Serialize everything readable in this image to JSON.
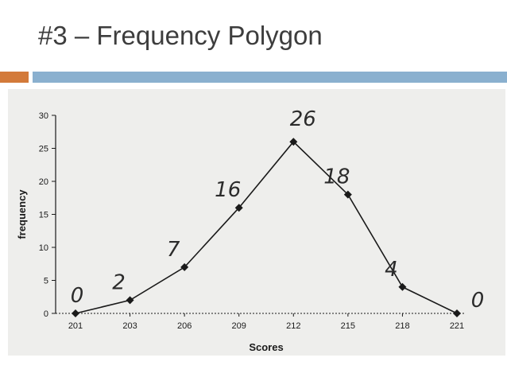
{
  "slide": {
    "title": "#3 – Frequency Polygon"
  },
  "colors": {
    "accent_orange": "#d37a3a",
    "accent_blue": "#8ab0cf",
    "photo_background": "#eeeeec",
    "ink": "#1a1a1a"
  },
  "chart_data": {
    "type": "line",
    "title": "",
    "xlabel": "Scores",
    "ylabel": "frequency",
    "x": [
      "201",
      "203",
      "206",
      "209",
      "212",
      "215",
      "218",
      "221"
    ],
    "y": [
      0,
      2,
      7,
      16,
      26,
      18,
      4,
      0
    ],
    "ylim": [
      0,
      30
    ],
    "yticks": [
      "0",
      "5",
      "10",
      "15",
      "20",
      "25",
      "30"
    ],
    "grid": false,
    "legend": "none",
    "marker": "diamond",
    "annotations": [
      "0",
      "2",
      "7",
      "16",
      "26",
      "18",
      "4",
      "0"
    ]
  }
}
